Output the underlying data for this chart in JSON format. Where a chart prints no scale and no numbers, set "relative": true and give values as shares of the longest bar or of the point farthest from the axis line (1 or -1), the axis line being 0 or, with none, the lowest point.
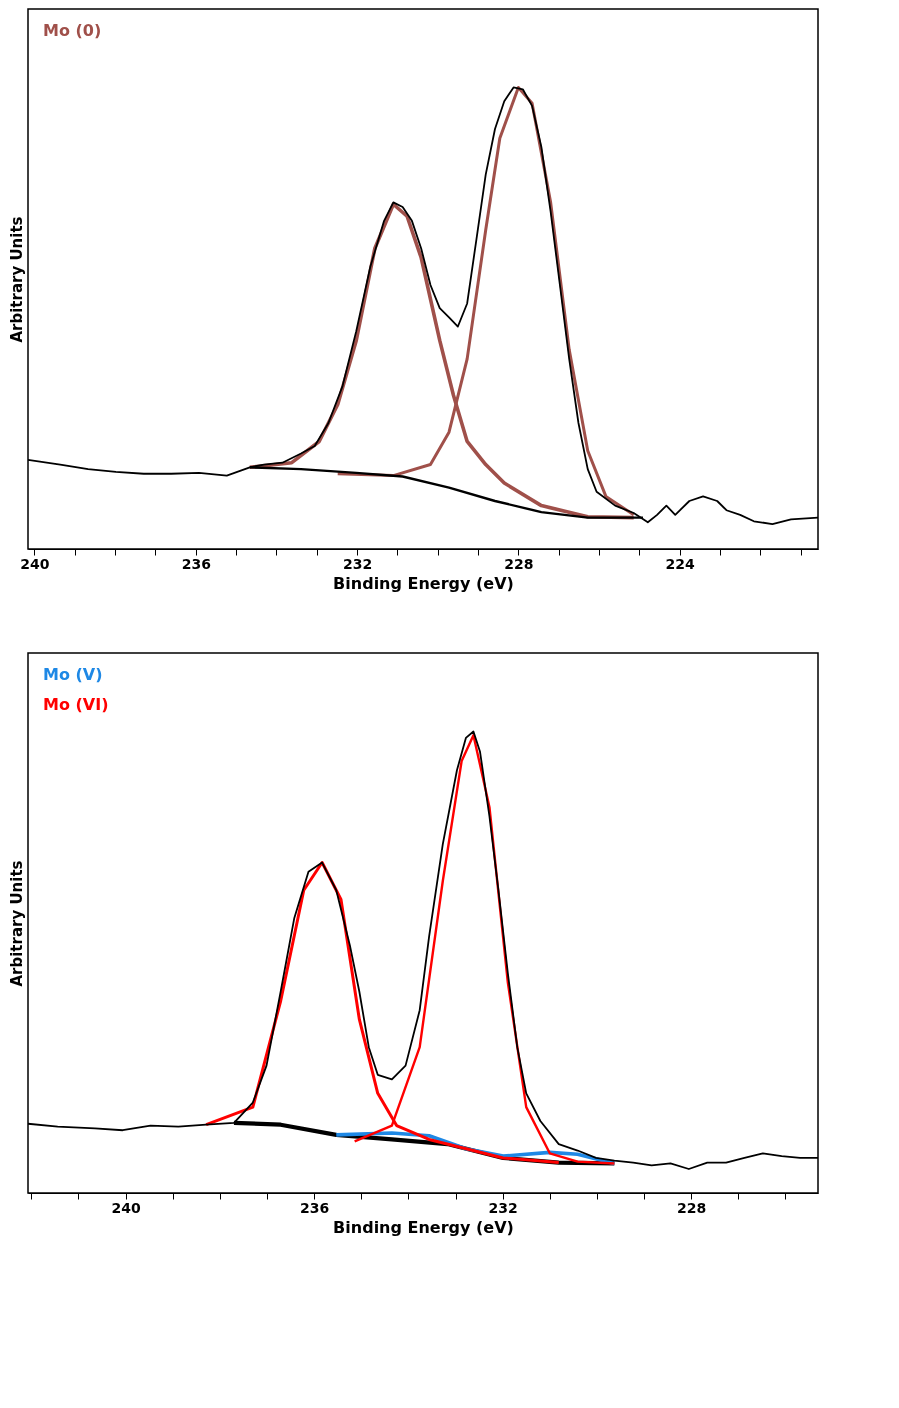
{
  "chart_data": [
    {
      "type": "line",
      "relative": true,
      "xlabel": "Binding Energy (eV)",
      "ylabel": "Arbitrary Units",
      "legend": "top left",
      "xlim": [
        240.16,
        220.57
      ],
      "xticks": [
        240,
        {
          "value": 239,
          "label": null
        },
        {
          "value": 238,
          "label": null
        },
        {
          "value": 237,
          "label": null
        },
        236,
        {
          "value": 235,
          "label": null
        },
        {
          "value": 234,
          "label": null
        },
        {
          "value": 233,
          "label": null
        },
        232,
        {
          "value": 231,
          "label": null
        },
        {
          "value": 230,
          "label": null
        },
        {
          "value": 229,
          "label": null
        },
        228,
        {
          "value": 227,
          "label": null
        },
        {
          "value": 226,
          "label": null
        },
        {
          "value": 225,
          "label": null
        },
        224,
        {
          "value": 223,
          "label": null
        },
        {
          "value": 222,
          "label": null
        },
        {
          "value": 221,
          "label": null
        }
      ],
      "series": [
        {
          "name": "Mo (0)",
          "color": "#a0504a",
          "x": [
            234.66,
            233.62,
            232.94,
            232.48,
            232.02,
            231.56,
            231.1,
            230.76,
            230.41,
            229.95,
            229.61,
            229.27,
            228.81,
            228.35,
            227.43,
            226.28,
            225.14
          ],
          "values": [
            0.177,
            0.187,
            0.233,
            0.313,
            0.452,
            0.651,
            0.747,
            0.721,
            0.631,
            0.452,
            0.333,
            0.233,
            0.183,
            0.143,
            0.094,
            0.07,
            0.068
          ]
        },
        {
          "color": "#a0504a",
          "x": [
            232.48,
            231.1,
            230.18,
            229.72,
            229.27,
            228.81,
            228.46,
            228.0,
            227.66,
            227.2,
            226.74,
            226.28,
            225.83,
            225.14
          ],
          "values": [
            0.163,
            0.159,
            0.183,
            0.253,
            0.412,
            0.691,
            0.89,
            1.0,
            0.966,
            0.751,
            0.432,
            0.213,
            0.114,
            0.074
          ]
        },
        {
          "color": "#000000",
          "x": [
            234.66,
            233.39,
            232.02,
            230.87,
            229.72,
            228.58,
            227.43,
            226.28,
            224.91
          ],
          "values": [
            0.177,
            0.173,
            0.165,
            0.157,
            0.133,
            0.104,
            0.08,
            0.068,
            0.068
          ]
        },
        {
          "color": "#000000",
          "x": [
            240.16,
            239.36,
            238.67,
            237.98,
            237.29,
            236.61,
            235.92,
            235.23,
            234.66,
            234.31,
            233.85,
            233.39,
            233.05,
            232.71,
            232.36,
            232.02,
            231.67,
            231.33,
            231.1,
            230.87,
            230.64,
            230.41,
            230.18,
            229.95,
            229.72,
            229.5,
            229.27,
            229.04,
            228.81,
            228.58,
            228.35,
            228.12,
            227.89,
            227.66,
            227.43,
            227.2,
            226.97,
            226.74,
            226.51,
            226.28,
            226.06,
            225.6,
            225.14,
            224.79,
            224.56,
            224.33,
            224.11,
            223.76,
            223.42,
            223.07,
            222.84,
            222.5,
            222.16,
            221.7,
            221.24,
            220.57
          ],
          "values": [
            0.193,
            0.183,
            0.173,
            0.167,
            0.163,
            0.163,
            0.165,
            0.159,
            0.177,
            0.183,
            0.187,
            0.207,
            0.223,
            0.273,
            0.353,
            0.472,
            0.612,
            0.711,
            0.751,
            0.741,
            0.711,
            0.651,
            0.572,
            0.522,
            0.502,
            0.482,
            0.532,
            0.671,
            0.811,
            0.91,
            0.97,
            1.0,
            0.996,
            0.96,
            0.871,
            0.731,
            0.572,
            0.412,
            0.273,
            0.173,
            0.124,
            0.094,
            0.078,
            0.058,
            0.074,
            0.094,
            0.074,
            0.104,
            0.114,
            0.104,
            0.084,
            0.074,
            0.06,
            0.054,
            0.064,
            0.068
          ]
        }
      ]
    },
    {
      "type": "line",
      "relative": true,
      "xlabel": "Binding Energy (eV)",
      "ylabel": "Arbitrary Units",
      "legend": "top left",
      "xlim": [
        242.07,
        225.31
      ],
      "xticks": [
        {
          "value": 242,
          "label": null
        },
        {
          "value": 241,
          "label": null
        },
        240,
        {
          "value": 239,
          "label": null
        },
        {
          "value": 238,
          "label": null
        },
        {
          "value": 237,
          "label": null
        },
        236,
        {
          "value": 235,
          "label": null
        },
        {
          "value": 234,
          "label": null
        },
        {
          "value": 233,
          "label": null
        },
        232,
        {
          "value": 231,
          "label": null
        },
        {
          "value": 230,
          "label": null
        },
        {
          "value": 229,
          "label": null
        },
        228,
        {
          "value": 227,
          "label": null
        },
        {
          "value": 226,
          "label": null
        }
      ],
      "series": [
        {
          "color": "#000000",
          "x": [
            237.7,
            236.71,
            235.53,
            234.35,
            233.17,
            231.99,
            230.81,
            229.63
          ],
          "values": [
            0.152,
            0.148,
            0.126,
            0.116,
            0.106,
            0.076,
            0.066,
            0.064
          ]
        },
        {
          "name": "Mo (V)",
          "color": "#1e88e5",
          "x": [
            235.53,
            234.35,
            233.56,
            232.78,
            231.99,
            231.0,
            230.41,
            229.63
          ],
          "values": [
            0.126,
            0.13,
            0.124,
            0.096,
            0.08,
            0.088,
            0.084,
            0.064
          ]
        },
        {
          "name": "Mo (VI)",
          "color": "#ff0000",
          "x": [
            238.29,
            237.3,
            236.71,
            236.22,
            235.83,
            235.43,
            235.04,
            234.65,
            234.25,
            233.56,
            231.99,
            230.81
          ],
          "values": [
            0.148,
            0.186,
            0.416,
            0.656,
            0.716,
            0.636,
            0.376,
            0.216,
            0.146,
            0.116,
            0.076,
            0.066
          ]
        },
        {
          "color": "#ff0000",
          "x": [
            235.14,
            234.35,
            233.76,
            233.27,
            232.87,
            232.62,
            232.28,
            231.89,
            231.5,
            231.0,
            230.41,
            229.63
          ],
          "values": [
            0.112,
            0.146,
            0.316,
            0.676,
            0.936,
            0.992,
            0.836,
            0.456,
            0.186,
            0.086,
            0.068,
            0.064
          ]
        },
        {
          "color": "#000000",
          "x": [
            242.07,
            241.44,
            240.65,
            240.06,
            239.47,
            238.88,
            238.29,
            237.7,
            237.3,
            237.01,
            236.71,
            236.42,
            236.12,
            235.83,
            235.53,
            235.24,
            235.04,
            234.84,
            234.65,
            234.35,
            234.06,
            233.76,
            233.56,
            233.27,
            232.97,
            232.78,
            232.62,
            232.48,
            232.28,
            232.09,
            231.89,
            231.69,
            231.5,
            231.2,
            230.81,
            230.41,
            230.02,
            229.63,
            229.23,
            228.84,
            228.44,
            228.05,
            227.66,
            227.26,
            226.87,
            226.48,
            226.08,
            225.69,
            225.31
          ],
          "values": [
            0.15,
            0.144,
            0.14,
            0.136,
            0.146,
            0.144,
            0.148,
            0.152,
            0.196,
            0.276,
            0.436,
            0.596,
            0.696,
            0.716,
            0.656,
            0.536,
            0.436,
            0.316,
            0.256,
            0.246,
            0.276,
            0.396,
            0.556,
            0.756,
            0.916,
            0.986,
            1.0,
            0.956,
            0.816,
            0.656,
            0.476,
            0.316,
            0.216,
            0.156,
            0.106,
            0.092,
            0.076,
            0.07,
            0.066,
            0.06,
            0.064,
            0.052,
            0.066,
            0.066,
            0.076,
            0.086,
            0.08,
            0.076,
            0.076
          ]
        }
      ]
    }
  ]
}
